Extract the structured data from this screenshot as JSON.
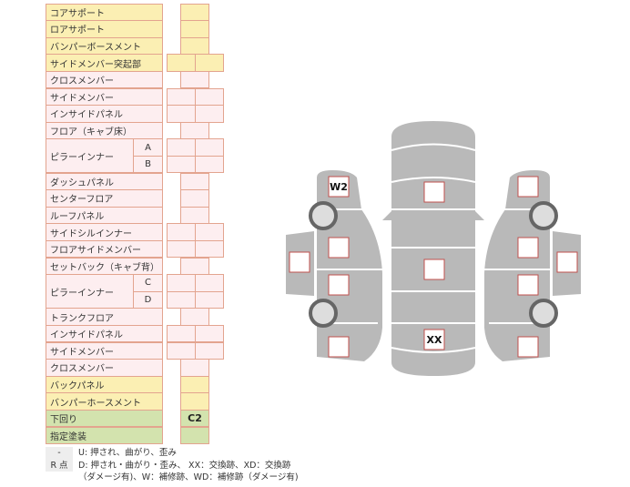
{
  "table": {
    "rows": [
      {
        "label": "コアサポート",
        "color": "yellow",
        "cells": 1
      },
      {
        "label": "ロアサポート",
        "color": "yellow",
        "cells": 1
      },
      {
        "label": "バンパーボースメント",
        "color": "yellow",
        "cells": 1
      },
      {
        "label": "サイドメンバー突起部",
        "color": "yellow",
        "cells": 2
      },
      {
        "label": "クロスメンバー",
        "color": "pink",
        "cells": 1
      },
      {
        "label": "サイドメンバー",
        "color": "pink",
        "cells": 2
      },
      {
        "label": "インサイドパネル",
        "color": "pink",
        "cells": 2
      },
      {
        "label": "フロア（キャブ床）",
        "color": "pink",
        "cells": 1
      },
      {
        "label": "ピラーインナー",
        "color": "pink",
        "cells": 2,
        "subs": [
          "A",
          "B"
        ]
      },
      {
        "label": "ダッシュパネル",
        "color": "pink",
        "cells": 1
      },
      {
        "label": "センターフロア",
        "color": "pink",
        "cells": 1
      },
      {
        "label": "ルーフパネル",
        "color": "pink",
        "cells": 1
      },
      {
        "label": "サイドシルインナー",
        "color": "pink",
        "cells": 2
      },
      {
        "label": "フロアサイドメンバー",
        "color": "pink",
        "cells": 2
      },
      {
        "label": "セットバック（キャブ背）",
        "color": "pink",
        "cells": 1
      },
      {
        "label": "ピラーインナー",
        "color": "pink",
        "cells": 2,
        "subs": [
          "C",
          "D"
        ]
      },
      {
        "label": "トランクフロア",
        "color": "pink",
        "cells": 1
      },
      {
        "label": "インサイドパネル",
        "color": "pink",
        "cells": 2
      },
      {
        "label": "サイドメンバー",
        "color": "pink",
        "cells": 2
      },
      {
        "label": "クロスメンバー",
        "color": "pink",
        "cells": 1
      },
      {
        "label": "バックパネル",
        "color": "yellow",
        "cells": 1
      },
      {
        "label": "バンパーホースメント",
        "color": "yellow",
        "cells": 1
      },
      {
        "label": "下回り",
        "color": "green",
        "cells": 1,
        "value": "C2"
      },
      {
        "label": "指定塗装",
        "color": "green",
        "cells": 1
      }
    ]
  },
  "legend": [
    {
      "key": "-",
      "text": "U: 押され、曲がり、歪み"
    },
    {
      "key": "R 点",
      "text": "D: 押され・曲がり・歪み、 XX：交換跡、XD：交換跡"
    },
    {
      "key": "",
      "text": "（ダメージ有)、W：補修跡、WD：補修跡（ダメージ有)"
    }
  ],
  "diagram": {
    "marks": {
      "left_front": "W2",
      "center_rear": "XX"
    },
    "body_color": "#b9b9b9",
    "mark_border_color": "#c0504d"
  }
}
